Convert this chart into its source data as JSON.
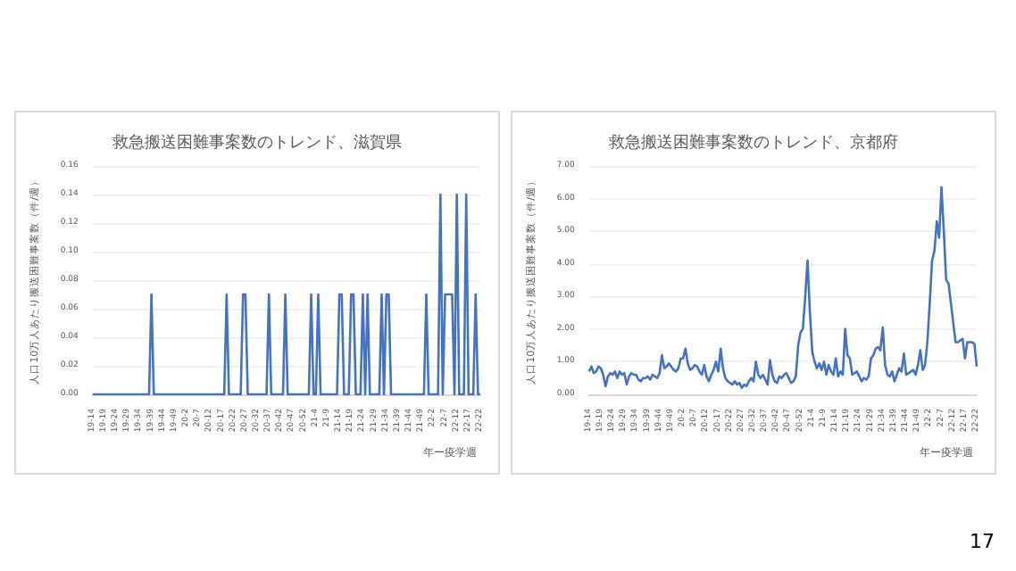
{
  "chart_data": [
    {
      "type": "line",
      "title": "救急搬送困難事案数のトレンド、滋賀県",
      "xlabel": "年ー疫学週",
      "ylabel": "人口10万人あたり搬送困難事案数（件/週）",
      "categories": [
        "19-14",
        null,
        null,
        null,
        null,
        "19-19",
        null,
        null,
        null,
        null,
        "19-24",
        null,
        null,
        null,
        null,
        "19-29",
        null,
        null,
        null,
        null,
        "19-34",
        null,
        null,
        null,
        null,
        "19-39",
        null,
        null,
        null,
        null,
        "19-44",
        null,
        null,
        null,
        null,
        "19-49",
        null,
        null,
        null,
        null,
        "20-2",
        null,
        null,
        null,
        null,
        "20-7",
        null,
        null,
        null,
        null,
        "20-12",
        null,
        null,
        null,
        null,
        "20-17",
        null,
        null,
        null,
        null,
        "20-22",
        null,
        null,
        null,
        null,
        "20-27",
        null,
        null,
        null,
        null,
        "20-32",
        null,
        null,
        null,
        null,
        "20-37",
        null,
        null,
        null,
        null,
        "20-42",
        null,
        null,
        null,
        null,
        "20-47",
        null,
        null,
        null,
        null,
        "20-52",
        null,
        null,
        null,
        null,
        "21-4",
        null,
        null,
        null,
        null,
        "21-9",
        null,
        null,
        null,
        null,
        "21-14",
        null,
        null,
        null,
        null,
        "21-19",
        null,
        null,
        null,
        null,
        "21-24",
        null,
        null,
        null,
        null,
        "21-29",
        null,
        null,
        null,
        null,
        "21-34",
        null,
        null,
        null,
        null,
        "21-39",
        null,
        null,
        null,
        null,
        "21-44",
        null,
        null,
        null,
        null,
        "21-49",
        null,
        null,
        null,
        null,
        "22-2",
        null,
        null,
        null,
        null,
        "22-7",
        null,
        null,
        null,
        null,
        "22-12",
        null,
        null,
        null,
        null,
        "22-17",
        null,
        null,
        null,
        null,
        "22-22"
      ],
      "series": [
        {
          "color": "#4472c4",
          "values": [
            0,
            0,
            0,
            0,
            0,
            0,
            0,
            0,
            0,
            0,
            0,
            0,
            0,
            0,
            0,
            0,
            0,
            0,
            0,
            0,
            0,
            0,
            0,
            0,
            0,
            0.07,
            0,
            0,
            0,
            0,
            0,
            0,
            0,
            0,
            0,
            0,
            0,
            0,
            0,
            0,
            0,
            0,
            0,
            0,
            0,
            0,
            0,
            0,
            0,
            0,
            0,
            0,
            0,
            0,
            0,
            0,
            0,
            0.07,
            0,
            0,
            0,
            0,
            0,
            0,
            0.07,
            0.07,
            0,
            0,
            0,
            0,
            0,
            0,
            0,
            0,
            0,
            0.07,
            0,
            0,
            0,
            0,
            0,
            0,
            0.07,
            0,
            0,
            0,
            0,
            0,
            0,
            0,
            0,
            0,
            0,
            0.07,
            0,
            0,
            0.07,
            0,
            0,
            0,
            0,
            0,
            0,
            0,
            0,
            0.07,
            0.07,
            0,
            0,
            0,
            0.07,
            0.07,
            0,
            0,
            0,
            0.07,
            0,
            0.07,
            0,
            0,
            0,
            0,
            0,
            0.07,
            0,
            0.07,
            0.07,
            0,
            0,
            0,
            0,
            0,
            0,
            0,
            0,
            0,
            0,
            0,
            0,
            0,
            0,
            0,
            0.07,
            0,
            0,
            0,
            0,
            0,
            0.14,
            0,
            0.07,
            0.07,
            0.07,
            0.07,
            0,
            0.14,
            0,
            0,
            0,
            0.14,
            0,
            0,
            0,
            0.07,
            0,
            0
          ]
        }
      ],
      "ylim": [
        0,
        0.16
      ],
      "yticks": [
        {
          "value": 0,
          "label": "0.00"
        },
        {
          "value": 0.02,
          "label": "0.02"
        },
        {
          "value": 0.04,
          "label": "0.04"
        },
        {
          "value": 0.06,
          "label": "0.06"
        },
        {
          "value": 0.08,
          "label": "0.08"
        },
        {
          "value": 0.1,
          "label": "0.10"
        },
        {
          "value": 0.12,
          "label": "0.12"
        },
        {
          "value": 0.14,
          "label": "0.14"
        },
        {
          "value": 0.16,
          "label": "0.16"
        }
      ],
      "grid": "y",
      "marker": "none"
    },
    {
      "type": "line",
      "title": "救急搬送困難事案数のトレンド、京都府",
      "xlabel": "年ー疫学週",
      "ylabel": "人口10万人あたり搬送困難事案数（件/週）",
      "annotations": [
        "17"
      ],
      "categories": [
        "19-14",
        null,
        null,
        null,
        null,
        "19-19",
        null,
        null,
        null,
        null,
        "19-24",
        null,
        null,
        null,
        null,
        "19-29",
        null,
        null,
        null,
        null,
        "19-34",
        null,
        null,
        null,
        null,
        "19-39",
        null,
        null,
        null,
        null,
        "19-44",
        null,
        null,
        null,
        null,
        "19-49",
        null,
        null,
        null,
        null,
        "20-2",
        null,
        null,
        null,
        null,
        "20-7",
        null,
        null,
        null,
        null,
        "20-12",
        null,
        null,
        null,
        null,
        "20-17",
        null,
        null,
        null,
        null,
        "20-22",
        null,
        null,
        null,
        null,
        "20-27",
        null,
        null,
        null,
        null,
        "20-32",
        null,
        null,
        null,
        null,
        "20-37",
        null,
        null,
        null,
        null,
        "20-42",
        null,
        null,
        null,
        null,
        "20-47",
        null,
        null,
        null,
        null,
        "20-52",
        null,
        null,
        null,
        null,
        "21-4",
        null,
        null,
        null,
        null,
        "21-9",
        null,
        null,
        null,
        null,
        "21-14",
        null,
        null,
        null,
        null,
        "21-19",
        null,
        null,
        null,
        null,
        "21-24",
        null,
        null,
        null,
        null,
        "21-29",
        null,
        null,
        null,
        null,
        "21-34",
        null,
        null,
        null,
        null,
        "21-39",
        null,
        null,
        null,
        null,
        "21-44",
        null,
        null,
        null,
        null,
        "21-49",
        null,
        null,
        null,
        null,
        "22-2",
        null,
        null,
        null,
        null,
        "22-7",
        null,
        null,
        null,
        null,
        "22-12",
        null,
        null,
        null,
        null,
        "22-17",
        null,
        null,
        null,
        null,
        "22-22"
      ],
      "series": [
        {
          "color": "#4472c4",
          "values": [
            0.7,
            0.85,
            0.65,
            0.7,
            0.85,
            0.8,
            0.6,
            0.25,
            0.55,
            0.65,
            0.6,
            0.7,
            0.5,
            0.7,
            0.6,
            0.65,
            0.3,
            0.55,
            0.65,
            0.6,
            0.6,
            0.45,
            0.4,
            0.5,
            0.5,
            0.55,
            0.45,
            0.6,
            0.55,
            0.5,
            0.65,
            1.2,
            0.8,
            0.85,
            0.95,
            0.85,
            0.75,
            0.7,
            0.8,
            1.1,
            1.1,
            1.4,
            0.95,
            0.75,
            0.8,
            0.9,
            0.85,
            0.7,
            0.6,
            0.9,
            0.55,
            0.4,
            0.6,
            0.75,
            1.0,
            0.7,
            1.4,
            0.8,
            0.5,
            0.4,
            0.35,
            0.3,
            0.4,
            0.3,
            0.35,
            0.2,
            0.3,
            0.25,
            0.4,
            0.5,
            0.4,
            1.0,
            0.6,
            0.5,
            0.6,
            0.45,
            0.3,
            1.05,
            0.6,
            0.4,
            0.35,
            0.55,
            0.5,
            0.6,
            0.65,
            0.5,
            0.35,
            0.4,
            0.55,
            1.5,
            1.9,
            2.0,
            3.0,
            4.1,
            2.5,
            1.3,
            1.0,
            0.8,
            0.95,
            0.75,
            1.0,
            0.6,
            0.9,
            0.7,
            0.6,
            1.1,
            0.55,
            0.7,
            0.6,
            2.0,
            1.2,
            1.1,
            0.6,
            0.65,
            0.7,
            0.55,
            0.4,
            0.5,
            0.45,
            0.55,
            1.1,
            1.2,
            1.4,
            1.45,
            1.35,
            2.05,
            0.9,
            0.6,
            0.55,
            0.7,
            0.4,
            0.6,
            0.8,
            0.7,
            1.25,
            0.6,
            0.65,
            0.7,
            0.75,
            0.6,
            0.9,
            1.35,
            0.75,
            0.9,
            1.6,
            2.8,
            4.1,
            4.4,
            5.3,
            4.8,
            6.35,
            5.0,
            3.5,
            3.4,
            2.8,
            2.2,
            1.6,
            1.6,
            1.65,
            1.7,
            1.1,
            1.6,
            1.6,
            1.6,
            1.55,
            0.85
          ]
        }
      ],
      "ylim": [
        0,
        7
      ],
      "yticks": [
        {
          "value": 0,
          "label": "0.00"
        },
        {
          "value": 1,
          "label": "1.00"
        },
        {
          "value": 2,
          "label": "2.00"
        },
        {
          "value": 3,
          "label": "3.00"
        },
        {
          "value": 4,
          "label": "4.00"
        },
        {
          "value": 5,
          "label": "5.00"
        },
        {
          "value": 6,
          "label": "6.00"
        },
        {
          "value": 7,
          "label": "7.00"
        }
      ],
      "grid": "y",
      "marker": "none"
    }
  ]
}
